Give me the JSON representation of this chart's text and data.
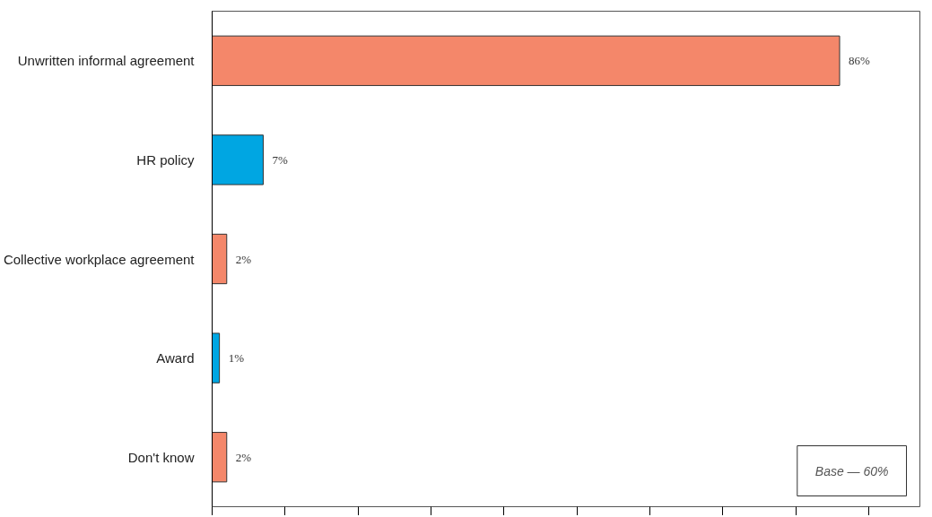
{
  "chart_data": {
    "type": "bar",
    "orientation": "horizontal",
    "categories": [
      "Unwritten informal agreement",
      "HR policy",
      "Collective workplace agreement",
      "Award",
      "Don't know"
    ],
    "values": [
      86,
      7,
      2,
      1,
      2
    ],
    "colors": [
      "#f4876a",
      "#00a6e2",
      "#f4876a",
      "#00a6e2",
      "#f4876a"
    ],
    "value_labels": [
      "86%",
      "7%",
      "2%",
      "1%",
      "2%"
    ],
    "xlim": [
      0,
      97
    ],
    "xticks": [
      {
        "value": 0,
        "label": null
      },
      {
        "value": 10,
        "label": null
      },
      {
        "value": 20,
        "label": null
      },
      {
        "value": 30,
        "label": null
      },
      {
        "value": 40,
        "label": null
      },
      {
        "value": 50,
        "label": null
      },
      {
        "value": 60,
        "label": null
      },
      {
        "value": 70,
        "label": null
      },
      {
        "value": 80,
        "label": null
      },
      {
        "value": 90,
        "label": null
      }
    ],
    "tick_labels": "y",
    "grid": false,
    "annotations": [
      "Base — 60%"
    ]
  }
}
